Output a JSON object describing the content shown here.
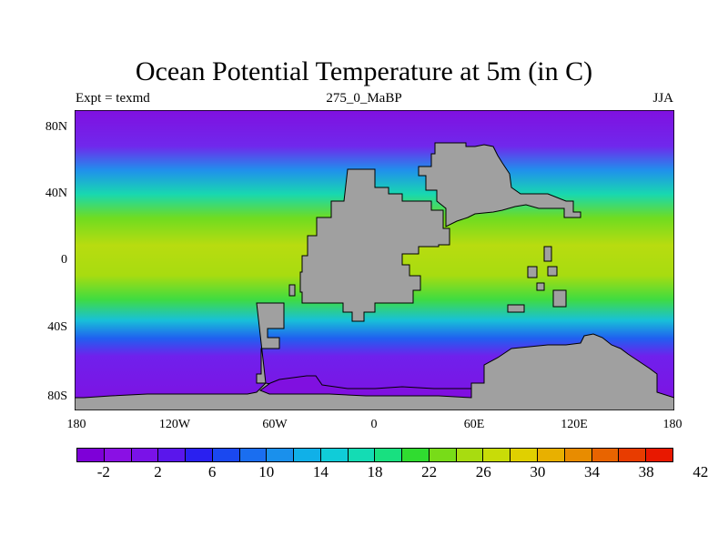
{
  "title": "Ocean Potential Temperature at 5m (in C)",
  "left_label": "Expt = texmd",
  "center_label": "275_0_MaBP",
  "right_label": "JJA",
  "y_ticks": [
    "80N",
    "40N",
    "0",
    "40S",
    "80S"
  ],
  "x_ticks": [
    "180",
    "120W",
    "60W",
    "0",
    "60E",
    "120E",
    "180"
  ],
  "colorbar": {
    "labels": [
      "-2",
      "2",
      "6",
      "10",
      "14",
      "18",
      "22",
      "26",
      "30",
      "34",
      "38",
      "42"
    ],
    "colors": [
      "#7e00d8",
      "#8a10e4",
      "#7a12e8",
      "#5a16ec",
      "#2a20f0",
      "#1a48f0",
      "#1a6ef0",
      "#1a90ec",
      "#10b0e8",
      "#10ccd8",
      "#14dcb4",
      "#18e080",
      "#30dc30",
      "#78dc18",
      "#a8dc10",
      "#c8dc08",
      "#e0d000",
      "#e8b000",
      "#e88c00",
      "#e86400",
      "#e83c00",
      "#e81800"
    ]
  },
  "map_colors": {
    "land": "#a0a0a0",
    "polar": "#8010e0",
    "cold": "#6a30f0",
    "cool": "#2098ec",
    "mild": "#18d8b0",
    "warm": "#70dc20",
    "hot": "#c8dc10"
  }
}
